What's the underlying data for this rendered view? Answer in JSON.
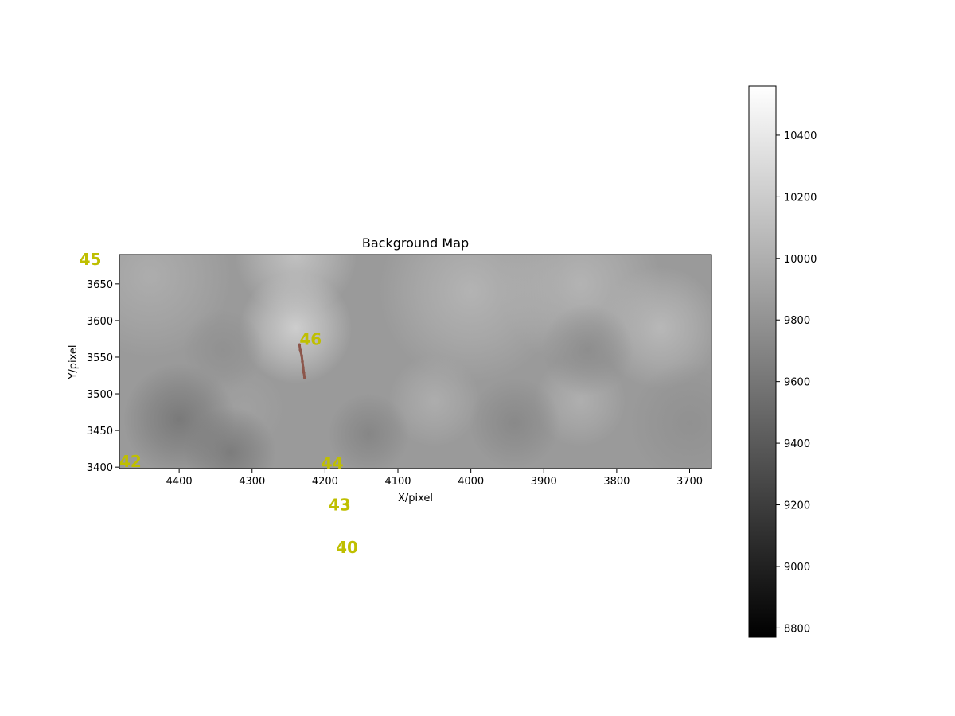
{
  "chart_data": {
    "type": "heatmap",
    "title": "Background Map",
    "xlabel": "X/pixel",
    "ylabel": "Y/pixel",
    "xlim": [
      4482,
      3670
    ],
    "ylim": [
      3398,
      3690
    ],
    "x_ticks": [
      4400,
      4300,
      4200,
      4100,
      4000,
      3900,
      3800,
      3700
    ],
    "y_ticks": [
      3400,
      3450,
      3500,
      3550,
      3600,
      3650
    ],
    "colormap": "gray",
    "colorbar": {
      "range": [
        8770,
        10560
      ],
      "ticks": [
        8800,
        9000,
        9200,
        9400,
        9600,
        9800,
        10000,
        10200,
        10400
      ]
    },
    "base_value": 9850,
    "blobs": [
      {
        "x": 4240,
        "y": 3590,
        "value": 10250,
        "spread": 55
      },
      {
        "x": 4240,
        "y": 3690,
        "value": 10150,
        "spread": 60
      },
      {
        "x": 3740,
        "y": 3590,
        "value": 10080,
        "spread": 60
      },
      {
        "x": 4000,
        "y": 3640,
        "value": 10050,
        "spread": 90
      },
      {
        "x": 3850,
        "y": 3650,
        "value": 10050,
        "spread": 80
      },
      {
        "x": 4440,
        "y": 3660,
        "value": 10000,
        "spread": 80
      },
      {
        "x": 4050,
        "y": 3490,
        "value": 10000,
        "spread": 45
      },
      {
        "x": 3850,
        "y": 3490,
        "value": 10010,
        "spread": 45
      },
      {
        "x": 4310,
        "y": 3480,
        "value": 9900,
        "spread": 40
      },
      {
        "x": 4400,
        "y": 3465,
        "value": 9600,
        "spread": 55
      },
      {
        "x": 4330,
        "y": 3420,
        "value": 9620,
        "spread": 45
      },
      {
        "x": 4140,
        "y": 3445,
        "value": 9700,
        "spread": 40
      },
      {
        "x": 3940,
        "y": 3460,
        "value": 9720,
        "spread": 45
      },
      {
        "x": 3840,
        "y": 3560,
        "value": 9750,
        "spread": 45
      },
      {
        "x": 4340,
        "y": 3560,
        "value": 9780,
        "spread": 40
      },
      {
        "x": 3700,
        "y": 3460,
        "value": 9780,
        "spread": 60
      }
    ],
    "track": {
      "color": "#8c564b",
      "points": [
        [
          4235,
          3567
        ],
        [
          4234,
          3560
        ],
        [
          4232,
          3552
        ],
        [
          4231,
          3544
        ],
        [
          4230,
          3536
        ],
        [
          4229,
          3529
        ],
        [
          4228,
          3522
        ]
      ]
    },
    "annotations": [
      {
        "text": "45",
        "x": 4537,
        "y": 3676
      },
      {
        "text": "46",
        "x": 4235,
        "y": 3567
      },
      {
        "text": "42",
        "x": 4482,
        "y": 3400
      },
      {
        "text": "44",
        "x": 4205,
        "y": 3398
      },
      {
        "text": "43",
        "x": 4195,
        "y": 3341
      },
      {
        "text": "40",
        "x": 4185,
        "y": 3283
      }
    ]
  }
}
